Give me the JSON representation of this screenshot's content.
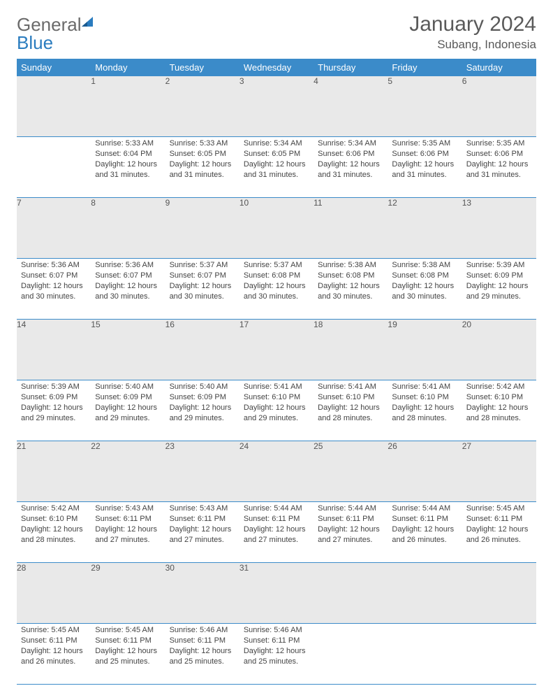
{
  "brand": {
    "text1": "General",
    "text2": "Blue"
  },
  "title": "January 2024",
  "location": "Subang, Indonesia",
  "weekdays": [
    "Sunday",
    "Monday",
    "Tuesday",
    "Wednesday",
    "Thursday",
    "Friday",
    "Saturday"
  ],
  "colors": {
    "header_bg": "#3b8bc9",
    "header_text": "#ffffff",
    "daynum_bg": "#e9e9e9",
    "rule": "#3b8bc9",
    "body_text": "#444444",
    "title_text": "#5a5a5a",
    "logo_gray": "#6a6a6a",
    "logo_blue": "#2a7cbf"
  },
  "weeks": [
    {
      "nums": [
        "",
        "1",
        "2",
        "3",
        "4",
        "5",
        "6"
      ],
      "cells": [
        null,
        {
          "sunrise": "Sunrise: 5:33 AM",
          "sunset": "Sunset: 6:04 PM",
          "day1": "Daylight: 12 hours",
          "day2": "and 31 minutes."
        },
        {
          "sunrise": "Sunrise: 5:33 AM",
          "sunset": "Sunset: 6:05 PM",
          "day1": "Daylight: 12 hours",
          "day2": "and 31 minutes."
        },
        {
          "sunrise": "Sunrise: 5:34 AM",
          "sunset": "Sunset: 6:05 PM",
          "day1": "Daylight: 12 hours",
          "day2": "and 31 minutes."
        },
        {
          "sunrise": "Sunrise: 5:34 AM",
          "sunset": "Sunset: 6:06 PM",
          "day1": "Daylight: 12 hours",
          "day2": "and 31 minutes."
        },
        {
          "sunrise": "Sunrise: 5:35 AM",
          "sunset": "Sunset: 6:06 PM",
          "day1": "Daylight: 12 hours",
          "day2": "and 31 minutes."
        },
        {
          "sunrise": "Sunrise: 5:35 AM",
          "sunset": "Sunset: 6:06 PM",
          "day1": "Daylight: 12 hours",
          "day2": "and 31 minutes."
        }
      ]
    },
    {
      "nums": [
        "7",
        "8",
        "9",
        "10",
        "11",
        "12",
        "13"
      ],
      "cells": [
        {
          "sunrise": "Sunrise: 5:36 AM",
          "sunset": "Sunset: 6:07 PM",
          "day1": "Daylight: 12 hours",
          "day2": "and 30 minutes."
        },
        {
          "sunrise": "Sunrise: 5:36 AM",
          "sunset": "Sunset: 6:07 PM",
          "day1": "Daylight: 12 hours",
          "day2": "and 30 minutes."
        },
        {
          "sunrise": "Sunrise: 5:37 AM",
          "sunset": "Sunset: 6:07 PM",
          "day1": "Daylight: 12 hours",
          "day2": "and 30 minutes."
        },
        {
          "sunrise": "Sunrise: 5:37 AM",
          "sunset": "Sunset: 6:08 PM",
          "day1": "Daylight: 12 hours",
          "day2": "and 30 minutes."
        },
        {
          "sunrise": "Sunrise: 5:38 AM",
          "sunset": "Sunset: 6:08 PM",
          "day1": "Daylight: 12 hours",
          "day2": "and 30 minutes."
        },
        {
          "sunrise": "Sunrise: 5:38 AM",
          "sunset": "Sunset: 6:08 PM",
          "day1": "Daylight: 12 hours",
          "day2": "and 30 minutes."
        },
        {
          "sunrise": "Sunrise: 5:39 AM",
          "sunset": "Sunset: 6:09 PM",
          "day1": "Daylight: 12 hours",
          "day2": "and 29 minutes."
        }
      ]
    },
    {
      "nums": [
        "14",
        "15",
        "16",
        "17",
        "18",
        "19",
        "20"
      ],
      "cells": [
        {
          "sunrise": "Sunrise: 5:39 AM",
          "sunset": "Sunset: 6:09 PM",
          "day1": "Daylight: 12 hours",
          "day2": "and 29 minutes."
        },
        {
          "sunrise": "Sunrise: 5:40 AM",
          "sunset": "Sunset: 6:09 PM",
          "day1": "Daylight: 12 hours",
          "day2": "and 29 minutes."
        },
        {
          "sunrise": "Sunrise: 5:40 AM",
          "sunset": "Sunset: 6:09 PM",
          "day1": "Daylight: 12 hours",
          "day2": "and 29 minutes."
        },
        {
          "sunrise": "Sunrise: 5:41 AM",
          "sunset": "Sunset: 6:10 PM",
          "day1": "Daylight: 12 hours",
          "day2": "and 29 minutes."
        },
        {
          "sunrise": "Sunrise: 5:41 AM",
          "sunset": "Sunset: 6:10 PM",
          "day1": "Daylight: 12 hours",
          "day2": "and 28 minutes."
        },
        {
          "sunrise": "Sunrise: 5:41 AM",
          "sunset": "Sunset: 6:10 PM",
          "day1": "Daylight: 12 hours",
          "day2": "and 28 minutes."
        },
        {
          "sunrise": "Sunrise: 5:42 AM",
          "sunset": "Sunset: 6:10 PM",
          "day1": "Daylight: 12 hours",
          "day2": "and 28 minutes."
        }
      ]
    },
    {
      "nums": [
        "21",
        "22",
        "23",
        "24",
        "25",
        "26",
        "27"
      ],
      "cells": [
        {
          "sunrise": "Sunrise: 5:42 AM",
          "sunset": "Sunset: 6:10 PM",
          "day1": "Daylight: 12 hours",
          "day2": "and 28 minutes."
        },
        {
          "sunrise": "Sunrise: 5:43 AM",
          "sunset": "Sunset: 6:11 PM",
          "day1": "Daylight: 12 hours",
          "day2": "and 27 minutes."
        },
        {
          "sunrise": "Sunrise: 5:43 AM",
          "sunset": "Sunset: 6:11 PM",
          "day1": "Daylight: 12 hours",
          "day2": "and 27 minutes."
        },
        {
          "sunrise": "Sunrise: 5:44 AM",
          "sunset": "Sunset: 6:11 PM",
          "day1": "Daylight: 12 hours",
          "day2": "and 27 minutes."
        },
        {
          "sunrise": "Sunrise: 5:44 AM",
          "sunset": "Sunset: 6:11 PM",
          "day1": "Daylight: 12 hours",
          "day2": "and 27 minutes."
        },
        {
          "sunrise": "Sunrise: 5:44 AM",
          "sunset": "Sunset: 6:11 PM",
          "day1": "Daylight: 12 hours",
          "day2": "and 26 minutes."
        },
        {
          "sunrise": "Sunrise: 5:45 AM",
          "sunset": "Sunset: 6:11 PM",
          "day1": "Daylight: 12 hours",
          "day2": "and 26 minutes."
        }
      ]
    },
    {
      "nums": [
        "28",
        "29",
        "30",
        "31",
        "",
        "",
        ""
      ],
      "cells": [
        {
          "sunrise": "Sunrise: 5:45 AM",
          "sunset": "Sunset: 6:11 PM",
          "day1": "Daylight: 12 hours",
          "day2": "and 26 minutes."
        },
        {
          "sunrise": "Sunrise: 5:45 AM",
          "sunset": "Sunset: 6:11 PM",
          "day1": "Daylight: 12 hours",
          "day2": "and 25 minutes."
        },
        {
          "sunrise": "Sunrise: 5:46 AM",
          "sunset": "Sunset: 6:11 PM",
          "day1": "Daylight: 12 hours",
          "day2": "and 25 minutes."
        },
        {
          "sunrise": "Sunrise: 5:46 AM",
          "sunset": "Sunset: 6:11 PM",
          "day1": "Daylight: 12 hours",
          "day2": "and 25 minutes."
        },
        null,
        null,
        null
      ]
    }
  ]
}
